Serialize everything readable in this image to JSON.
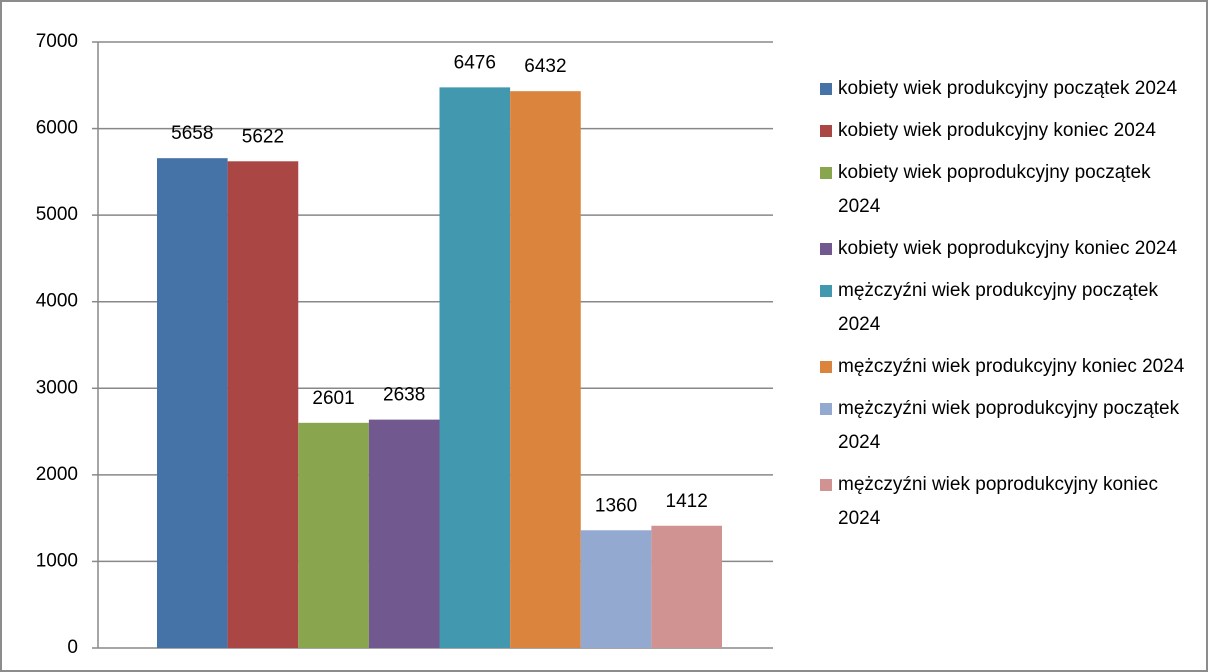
{
  "chart_data": {
    "type": "bar",
    "categories": [
      null
    ],
    "series": [
      {
        "name": "kobiety wiek produkcyjny początek 2024",
        "color": "#4572a7",
        "values": [
          5658
        ]
      },
      {
        "name": "kobiety wiek produkcyjny koniec 2024",
        "color": "#aa4643",
        "values": [
          5622
        ]
      },
      {
        "name": "kobiety wiek poprodukcyjny początek 2024",
        "color": "#89a54e",
        "values": [
          2601
        ]
      },
      {
        "name": "kobiety wiek poprodukcyjny koniec 2024",
        "color": "#71588f",
        "values": [
          2638
        ]
      },
      {
        "name": "mężczyźni wiek produkcyjny początek 2024",
        "color": "#4198af",
        "values": [
          6476
        ]
      },
      {
        "name": "mężczyźni wiek produkcyjny koniec 2024",
        "color": "#db843d",
        "values": [
          6432
        ]
      },
      {
        "name": "mężczyźni wiek poprodukcyjny początek 2024",
        "color": "#93a9cf",
        "values": [
          1360
        ]
      },
      {
        "name": "mężczyźni wiek poprodukcyjny koniec 2024",
        "color": "#d19392",
        "values": [
          1412
        ]
      }
    ],
    "ylim": [
      0,
      7000
    ],
    "yticks": [
      0,
      1000,
      2000,
      3000,
      4000,
      5000,
      6000,
      7000
    ],
    "grid": true,
    "legend": "right"
  }
}
